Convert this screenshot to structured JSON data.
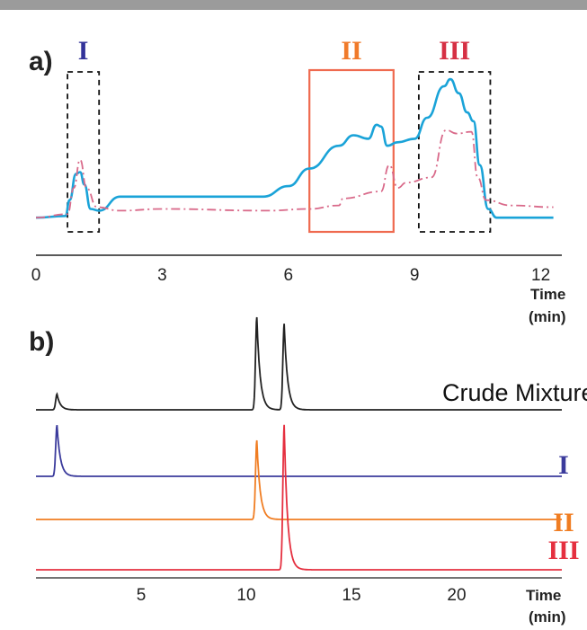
{
  "chart_data": [
    {
      "type": "line",
      "panel_label": "a)",
      "xlabel": "Time",
      "xlabel_unit": "(min)",
      "xlim": [
        0,
        12.5
      ],
      "x_ticks": [
        0,
        3,
        6,
        9,
        12
      ],
      "x_tick_labels": [
        "0",
        "3",
        "6",
        "9",
        "12"
      ],
      "grid": false,
      "regions": [
        {
          "label": "I",
          "x_range": [
            0.75,
            1.5
          ],
          "color": "#33339a",
          "style": "dashed",
          "box_color": "#111111"
        },
        {
          "label": "II",
          "x_range": [
            6.5,
            8.5
          ],
          "color": "#f07a2a",
          "style": "solid",
          "box_color": "#ef6a4f"
        },
        {
          "label": "III",
          "x_range": [
            9.1,
            10.8
          ],
          "color": "#d63044",
          "style": "dashed",
          "box_color": "#111111"
        }
      ],
      "series": [
        {
          "color": "#1aa3d8",
          "style": "solid",
          "points": [
            [
              0,
              0.05
            ],
            [
              0.7,
              0.06
            ],
            [
              0.8,
              0.15
            ],
            [
              0.95,
              0.3
            ],
            [
              1.05,
              0.31
            ],
            [
              1.15,
              0.24
            ],
            [
              1.3,
              0.1
            ],
            [
              1.5,
              0.09
            ],
            [
              2.0,
              0.17
            ],
            [
              5.4,
              0.17
            ],
            [
              6.0,
              0.23
            ],
            [
              6.5,
              0.33
            ],
            [
              7.2,
              0.46
            ],
            [
              7.55,
              0.52
            ],
            [
              7.9,
              0.5
            ],
            [
              8.1,
              0.58
            ],
            [
              8.2,
              0.57
            ],
            [
              8.35,
              0.46
            ],
            [
              8.6,
              0.48
            ],
            [
              9.0,
              0.5
            ],
            [
              9.3,
              0.62
            ],
            [
              9.7,
              0.8
            ],
            [
              9.85,
              0.84
            ],
            [
              10.05,
              0.76
            ],
            [
              10.25,
              0.65
            ],
            [
              10.4,
              0.6
            ],
            [
              10.55,
              0.35
            ],
            [
              10.75,
              0.1
            ],
            [
              10.95,
              0.05
            ],
            [
              12.3,
              0.05
            ]
          ]
        },
        {
          "color": "#d96a8a",
          "style": "dash-dot",
          "points": [
            [
              0,
              0.05
            ],
            [
              0.75,
              0.07
            ],
            [
              0.9,
              0.22
            ],
            [
              1.05,
              0.38
            ],
            [
              1.2,
              0.22
            ],
            [
              1.45,
              0.11
            ],
            [
              2.0,
              0.09
            ],
            [
              3.0,
              0.1
            ],
            [
              5.5,
              0.09
            ],
            [
              6.5,
              0.1
            ],
            [
              7.2,
              0.12
            ],
            [
              7.3,
              0.16
            ],
            [
              8.2,
              0.2
            ],
            [
              8.4,
              0.35
            ],
            [
              8.6,
              0.22
            ],
            [
              8.8,
              0.25
            ],
            [
              9.4,
              0.28
            ],
            [
              9.75,
              0.55
            ],
            [
              10.0,
              0.53
            ],
            [
              10.35,
              0.54
            ],
            [
              10.5,
              0.28
            ],
            [
              10.7,
              0.15
            ],
            [
              11.3,
              0.12
            ],
            [
              12.3,
              0.11
            ]
          ]
        }
      ]
    },
    {
      "type": "line",
      "panel_label": "b)",
      "xlabel": "Time",
      "xlabel_unit": "(min)",
      "xlim": [
        0,
        25
      ],
      "x_ticks": [
        5,
        10,
        15,
        20
      ],
      "x_tick_labels": [
        "5",
        "10",
        "15",
        "20"
      ],
      "grid": false,
      "series": [
        {
          "name": "Crude Mixture",
          "color": "#222222",
          "baseline": 0,
          "peaks": [
            [
              1.0,
              0.17
            ],
            [
              10.5,
              1.0
            ],
            [
              11.8,
              0.93
            ]
          ]
        },
        {
          "name": "I",
          "color": "#3b3b9c",
          "baseline": 0,
          "peaks": [
            [
              1.0,
              0.85
            ]
          ]
        },
        {
          "name": "II",
          "color": "#f07d22",
          "baseline": 0,
          "peaks": [
            [
              10.5,
              1.0
            ]
          ]
        },
        {
          "name": "III",
          "color": "#e53040",
          "baseline": 0,
          "peaks": [
            [
              11.8,
              1.55
            ]
          ]
        }
      ]
    }
  ]
}
